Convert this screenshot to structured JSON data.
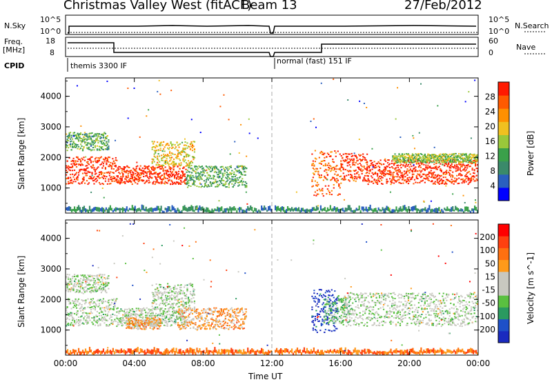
{
  "header": {
    "station": "Christmas Valley West (fitACF)",
    "beam": "Beam 13",
    "date": "27/Feb/2012"
  },
  "top_panels": {
    "nsky_label": "N.Sky",
    "nsky_ticks": [
      "10^5",
      "10^0"
    ],
    "nsearch_label": "N.Search",
    "freq_label": "Freq.",
    "freq_unit": "[MHz]",
    "freq_ticks": [
      "18",
      "8"
    ],
    "nave_label": "Nave",
    "nave_ticks": [
      "60",
      "0"
    ],
    "cpid_label": "CPID",
    "cpid_1": "themis 3300 IF",
    "cpid_2": "normal (fast) 151 IF"
  },
  "colors": {
    "power_scale": [
      "#0000ff",
      "#2a5fbf",
      "#3a8a6a",
      "#3aa04a",
      "#9ac83a",
      "#f0c020",
      "#ff9000",
      "#ff5a00",
      "#ff1a00"
    ],
    "velocity_scale": [
      "#1a2abf",
      "#1e50c8",
      "#2a9a60",
      "#5ac040",
      "#c8c8c0",
      "#c8c8c0",
      "#ff9a1a",
      "#ff7010",
      "#ff4010",
      "#ff0000"
    ]
  },
  "chart_data": [
    {
      "type": "heatmap",
      "title": "Power",
      "ylabel": "Slant Range [km]",
      "xlabel": "",
      "y_ticks": [
        "4000",
        "3000",
        "2000",
        "1000"
      ],
      "ylim": [
        180,
        4600
      ],
      "x_ticks": [
        "00:00",
        "04:00",
        "08:00",
        "12:00",
        "16:00",
        "20:00",
        "00:00"
      ],
      "colorbar_label": "Power [dB]",
      "colorbar_ticks": [
        "28",
        "24",
        "20",
        "16",
        "12",
        "8",
        "4"
      ],
      "blobs": [
        {
          "t0": 0.0,
          "t1": 3.0,
          "r0": 1100,
          "r1": 2000,
          "level": 8
        },
        {
          "t0": 0.0,
          "t1": 2.5,
          "r0": 2200,
          "r1": 2800,
          "level": 3
        },
        {
          "t0": 3.0,
          "t1": 7.0,
          "r0": 1100,
          "r1": 1700,
          "level": 8
        },
        {
          "t0": 5.0,
          "t1": 7.5,
          "r0": 1700,
          "r1": 2500,
          "level": 5
        },
        {
          "t0": 7.0,
          "t1": 10.5,
          "r0": 1000,
          "r1": 1700,
          "level": 3
        },
        {
          "t0": 14.3,
          "t1": 16.0,
          "r0": 700,
          "r1": 2200,
          "level": 7
        },
        {
          "t0": 16.0,
          "t1": 17.5,
          "r0": 1200,
          "r1": 2100,
          "level": 8
        },
        {
          "t0": 17.5,
          "t1": 24.0,
          "r0": 1100,
          "r1": 1900,
          "level": 8
        },
        {
          "t0": 19.0,
          "t1": 24.0,
          "r0": 1800,
          "r1": 2100,
          "level": 4
        }
      ],
      "ground_band": {
        "r0": 180,
        "r1": 450,
        "level": 1
      }
    },
    {
      "type": "heatmap",
      "title": "Velocity",
      "ylabel": "Slant Range [km]",
      "xlabel": "Time UT",
      "y_ticks": [
        "4000",
        "3000",
        "2000",
        "1000"
      ],
      "ylim": [
        180,
        4600
      ],
      "x_ticks": [
        "00:00",
        "04:00",
        "08:00",
        "12:00",
        "16:00",
        "20:00",
        "00:00"
      ],
      "colorbar_label": "Velocity [m s^-1]",
      "colorbar_ticks": [
        "200",
        "100",
        "50",
        "15",
        "-15",
        "-50",
        "-100",
        "-200"
      ],
      "blobs": [
        {
          "t0": 0.0,
          "t1": 3.0,
          "r0": 1100,
          "r1": 2000,
          "level": 4
        },
        {
          "t0": 0.0,
          "t1": 2.5,
          "r0": 2200,
          "r1": 2800,
          "level": 4
        },
        {
          "t0": 3.0,
          "t1": 7.0,
          "r0": 1100,
          "r1": 1700,
          "level": 4
        },
        {
          "t0": 5.0,
          "t1": 7.5,
          "r0": 1700,
          "r1": 2500,
          "level": 4
        },
        {
          "t0": 3.5,
          "t1": 5.5,
          "r0": 1000,
          "r1": 1400,
          "level": 6
        },
        {
          "t0": 6.5,
          "t1": 10.5,
          "r0": 1000,
          "r1": 1700,
          "level": 6
        },
        {
          "t0": 14.3,
          "t1": 15.8,
          "r0": 900,
          "r1": 2300,
          "level": 0
        },
        {
          "t0": 15.0,
          "t1": 16.5,
          "r0": 1200,
          "r1": 2100,
          "level": 3
        },
        {
          "t0": 16.0,
          "t1": 24.0,
          "r0": 1100,
          "r1": 2200,
          "level": 4
        }
      ],
      "ground_band": {
        "r0": 180,
        "r1": 450,
        "level": 6
      }
    }
  ]
}
